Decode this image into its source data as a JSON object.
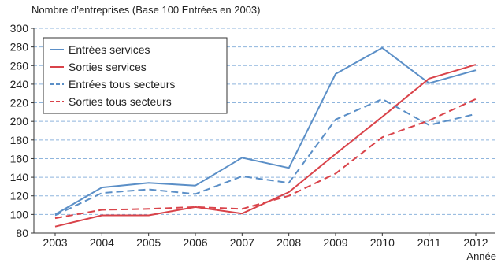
{
  "chart_data": {
    "type": "line",
    "title": "Nombre d’entreprises (Base 100 Entrées en 2003)",
    "xlabel": "Année",
    "ylabel": "",
    "ylim": [
      80,
      300
    ],
    "yticks": [
      80,
      100,
      120,
      140,
      160,
      180,
      200,
      220,
      240,
      260,
      280,
      300
    ],
    "categories": [
      "2003",
      "2004",
      "2005",
      "2006",
      "2007",
      "2008",
      "2009",
      "2010",
      "2011",
      "2012"
    ],
    "grid": "horizontal dashed",
    "legend_position": "top-left",
    "series": [
      {
        "name": "Entrées services",
        "color": "#5b8fc7",
        "style": "solid",
        "values": [
          100,
          129,
          134,
          131,
          161,
          150,
          251,
          279,
          241,
          255
        ]
      },
      {
        "name": "Sorties services",
        "color": "#d9434a",
        "style": "solid",
        "values": [
          87,
          99,
          99,
          108,
          101,
          124,
          165,
          205,
          246,
          261
        ]
      },
      {
        "name": "Entrées tous secteurs",
        "color": "#5b8fc7",
        "style": "dashed",
        "values": [
          99,
          123,
          127,
          122,
          141,
          134,
          202,
          224,
          196,
          208
        ]
      },
      {
        "name": "Sorties tous secteurs",
        "color": "#d9434a",
        "style": "dashed",
        "values": [
          96,
          105,
          106,
          108,
          106,
          120,
          144,
          183,
          201,
          224
        ]
      }
    ]
  }
}
